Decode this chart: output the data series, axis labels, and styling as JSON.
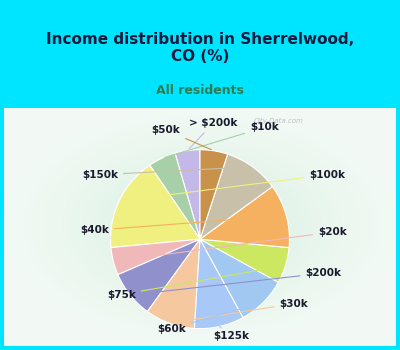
{
  "title": "Income distribution in Sherrelwood,\nCO (%)",
  "subtitle": "All residents",
  "labels": [
    "> $200k",
    "$10k",
    "$100k",
    "$20k",
    "$200k",
    "$30k",
    "$125k",
    "$60k",
    "$75k",
    "$40k",
    "$150k",
    "$50k"
  ],
  "sizes": [
    4.5,
    5.0,
    17.0,
    5.0,
    8.5,
    9.0,
    9.0,
    9.0,
    6.5,
    11.5,
    10.0,
    5.0
  ],
  "colors": [
    "#c4b8e8",
    "#a8d0a8",
    "#f0f080",
    "#f0b8b8",
    "#9090cc",
    "#f5c8a0",
    "#a8c8f8",
    "#a0c8f0",
    "#cce860",
    "#f5b060",
    "#c8c0a8",
    "#c8924a"
  ],
  "startangle": 90,
  "bg_color": "#00e5ff",
  "chart_bg": "#d4ede8",
  "title_color": "#1a1a3e",
  "subtitle_color": "#2e7d52",
  "label_color": "#1a1a2e",
  "wedge_edge_color": "white",
  "wedge_linewidth": 0.8,
  "label_fontsize": 7.5,
  "watermark": "City-Data.com"
}
